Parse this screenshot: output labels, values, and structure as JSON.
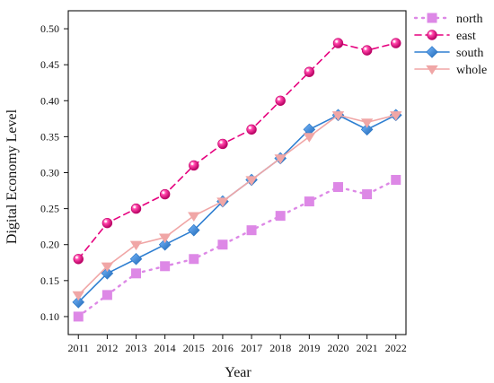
{
  "chart_data": {
    "type": "line",
    "title": "",
    "xlabel": "Year",
    "ylabel": "Digital Economy Level",
    "x": [
      2011,
      2012,
      2013,
      2014,
      2015,
      2016,
      2017,
      2018,
      2019,
      2020,
      2021,
      2022
    ],
    "x_tick_labels": [
      "2011",
      "2012",
      "2013",
      "2014",
      "2015",
      "2016",
      "2017",
      "2018",
      "2019",
      "2020",
      "2021",
      "2022"
    ],
    "y_ticks": [
      0.1,
      0.15,
      0.2,
      0.25,
      0.3,
      0.35,
      0.4,
      0.45,
      0.5
    ],
    "y_tick_labels": [
      "0.10",
      "0.15",
      "0.20",
      "0.25",
      "0.30",
      "0.35",
      "0.40",
      "0.45",
      "0.50"
    ],
    "xlim": [
      2010.65,
      2022.35
    ],
    "ylim": [
      0.075,
      0.525
    ],
    "grid": false,
    "legend_position": "outside-top-right",
    "series": [
      {
        "name": "north",
        "color": "#dd88e6",
        "line_style": "dotted",
        "marker": "square",
        "values": [
          0.1,
          0.13,
          0.16,
          0.17,
          0.18,
          0.2,
          0.22,
          0.24,
          0.26,
          0.28,
          0.27,
          0.29
        ]
      },
      {
        "name": "east",
        "color": "#e6007e",
        "line_style": "dashed",
        "marker": "sphere",
        "values": [
          0.18,
          0.23,
          0.25,
          0.27,
          0.31,
          0.34,
          0.36,
          0.4,
          0.44,
          0.48,
          0.47,
          0.48
        ]
      },
      {
        "name": "south",
        "color": "#2f7fd1",
        "line_style": "solid",
        "marker": "diamond",
        "values": [
          0.12,
          0.16,
          0.18,
          0.2,
          0.22,
          0.26,
          0.29,
          0.32,
          0.36,
          0.38,
          0.36,
          0.38
        ]
      },
      {
        "name": "whole",
        "color": "#f0a6a6",
        "line_style": "solid",
        "marker": "triangle-down",
        "values": [
          0.13,
          0.17,
          0.2,
          0.21,
          0.24,
          0.26,
          0.29,
          0.32,
          0.35,
          0.38,
          0.37,
          0.38
        ]
      }
    ]
  }
}
